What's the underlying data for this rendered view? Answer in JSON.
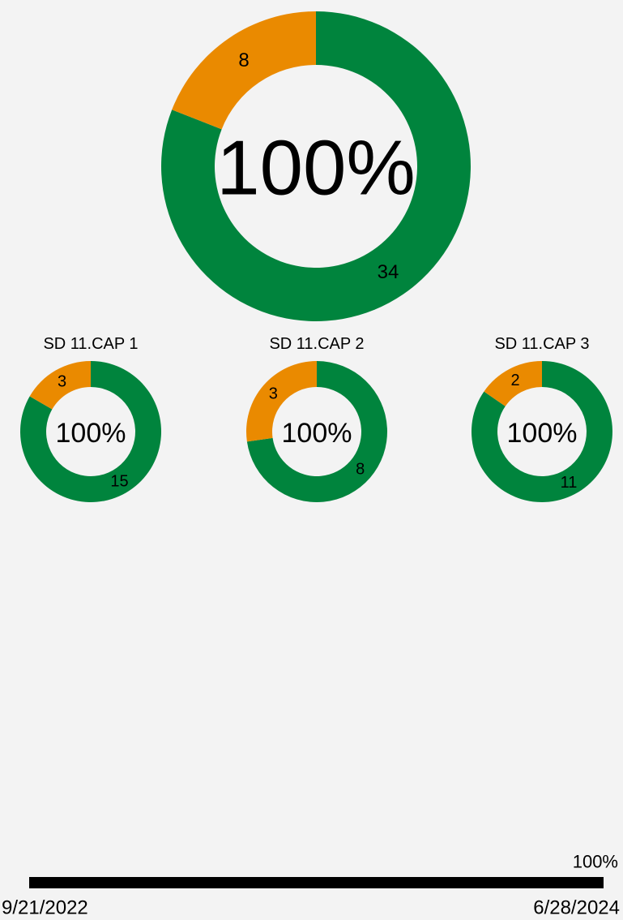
{
  "chart_data": [
    {
      "type": "donut",
      "center_label": "100%",
      "values": [
        34,
        8
      ],
      "colors": [
        "#00843d",
        "#ea8a00"
      ]
    },
    {
      "type": "donut",
      "title": "SD 11.CAP 1",
      "center_label": "100%",
      "values": [
        15,
        3
      ],
      "colors": [
        "#00843d",
        "#ea8a00"
      ]
    },
    {
      "type": "donut",
      "title": "SD 11.CAP 2",
      "center_label": "100%",
      "values": [
        8,
        3
      ],
      "colors": [
        "#00843d",
        "#ea8a00"
      ]
    },
    {
      "type": "donut",
      "title": "SD 11.CAP 3",
      "center_label": "100%",
      "values": [
        11,
        2
      ],
      "colors": [
        "#00843d",
        "#ea8a00"
      ]
    }
  ],
  "progress": {
    "value": 100,
    "label": "100%",
    "max": 100,
    "start": "9/21/2022",
    "end": "6/28/2024",
    "color": "#000000"
  }
}
